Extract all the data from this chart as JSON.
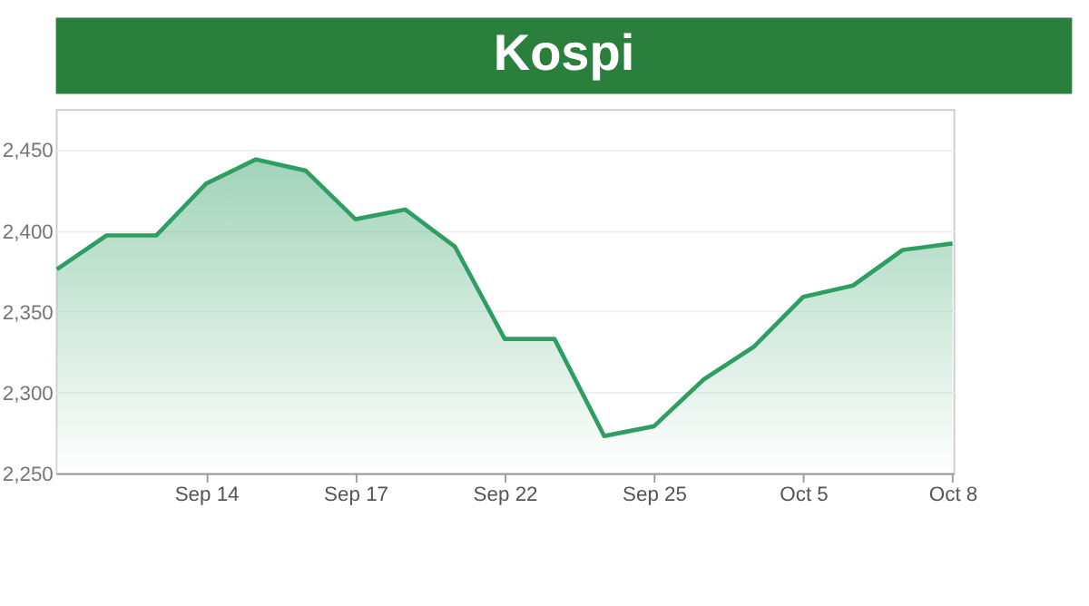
{
  "chart_data": {
    "type": "area",
    "title": "Kospi",
    "categories": [
      null,
      null,
      null,
      "Sep 14",
      null,
      null,
      "Sep 17",
      null,
      null,
      "Sep 22",
      null,
      null,
      "Sep 25",
      null,
      null,
      "Oct 5",
      null,
      null,
      "Oct 8"
    ],
    "series": [
      {
        "color": "#2e9e63",
        "values": [
          2376,
          2397,
          2397,
          2429,
          2444,
          2437,
          2407,
          2413,
          2390,
          2333,
          2333,
          2273,
          2279,
          2308,
          2328,
          2359,
          2366,
          2388,
          2392
        ]
      }
    ],
    "ylim": [
      2250,
      2475
    ],
    "yticks": [
      {
        "value": 2250,
        "label": "2,250"
      },
      {
        "value": 2300,
        "label": "2,300"
      },
      {
        "value": 2350,
        "label": "2,350"
      },
      {
        "value": 2400,
        "label": "2,400"
      },
      {
        "value": 2450,
        "label": "2,450"
      }
    ],
    "grid": "y"
  }
}
